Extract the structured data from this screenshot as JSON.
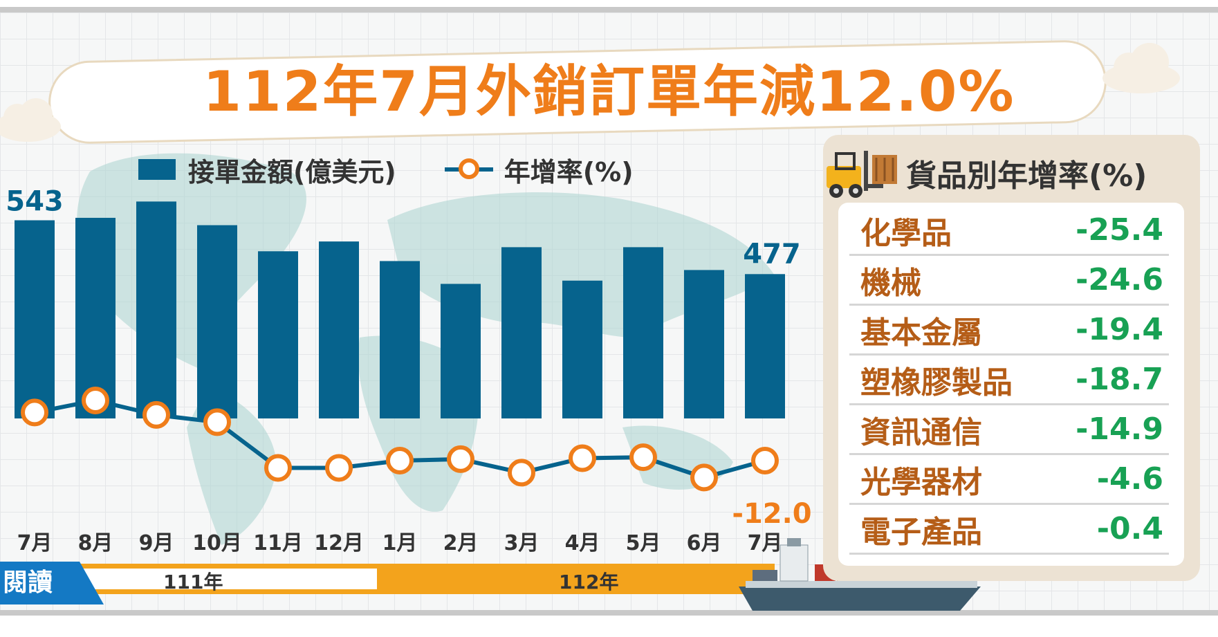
{
  "title": "112年7月外銷訂單年減12.0%",
  "legend": {
    "bar_label": "接單金額(億美元)",
    "line_label": "年增率(%)"
  },
  "colors": {
    "bar": "#06638d",
    "line": "#06638d",
    "marker": "#ef7d1a",
    "title": "#ef7d1a",
    "goods_name": "#b55d17",
    "goods_value": "#18a154",
    "year_band": "#f3a31c"
  },
  "chart_data": {
    "type": "bar",
    "categories": [
      "7月",
      "8月",
      "9月",
      "10月",
      "11月",
      "12月",
      "1月",
      "2月",
      "3月",
      "4月",
      "5月",
      "6月",
      "7月"
    ],
    "series": [
      {
        "name": "接單金額(億美元)",
        "type": "bar",
        "values": [
          543,
          546,
          566,
          537,
          505,
          517,
          493,
          465,
          510,
          469,
          510,
          482,
          477
        ]
      },
      {
        "name": "年增率(%)",
        "type": "line",
        "values": [
          -2.0,
          0.5,
          -2.5,
          -4.0,
          -13.5,
          -13.5,
          -12.0,
          -11.7,
          -14.5,
          -11.5,
          -11.3,
          -15.5,
          -12.0
        ]
      }
    ],
    "data_labels": {
      "first_bar": "543",
      "last_bar": "477",
      "last_line": "-12.0"
    },
    "years": [
      {
        "label": "111年",
        "span": [
          "7月",
          "12月"
        ]
      },
      {
        "label": "112年",
        "span": [
          "1月",
          "7月"
        ]
      }
    ]
  },
  "read_tag": "閱讀",
  "goods_panel": {
    "title": "貨品別年增率(%)",
    "icon": "forklift-icon",
    "items": [
      {
        "name": "化學品",
        "value": "-25.4"
      },
      {
        "name": "機械",
        "value": "-24.6"
      },
      {
        "name": "基本金屬",
        "value": "-19.4"
      },
      {
        "name": "塑橡膠製品",
        "value": "-18.7"
      },
      {
        "name": "資訊通信",
        "value": "-14.9"
      },
      {
        "name": "光學器材",
        "value": "-4.6"
      },
      {
        "name": "電子產品",
        "value": "-0.4"
      }
    ]
  }
}
